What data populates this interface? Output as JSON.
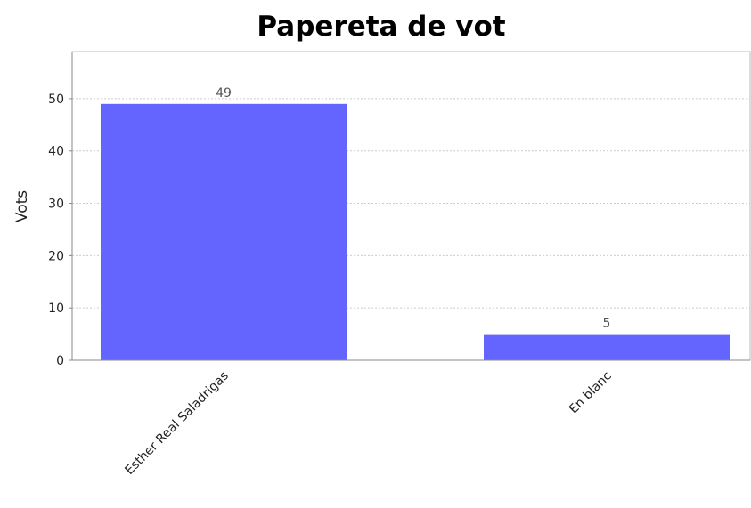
{
  "chart_data": {
    "type": "bar",
    "title": "Papereta de vot",
    "xlabel": "",
    "ylabel": "Vots",
    "categories": [
      "Esther Real Saladrigas",
      "En blanc"
    ],
    "values": [
      49,
      5
    ],
    "data_labels": [
      "49",
      "5"
    ],
    "ylim": [
      0,
      59
    ],
    "yticks": [
      0,
      10,
      20,
      30,
      40,
      50
    ],
    "ytick_labels": [
      "0",
      "10",
      "20",
      "30",
      "40",
      "50"
    ],
    "grid": true,
    "legend": "none",
    "colors": {
      "bar": "#6464ff",
      "grid": "#cccccc",
      "axis": "#888888"
    }
  }
}
